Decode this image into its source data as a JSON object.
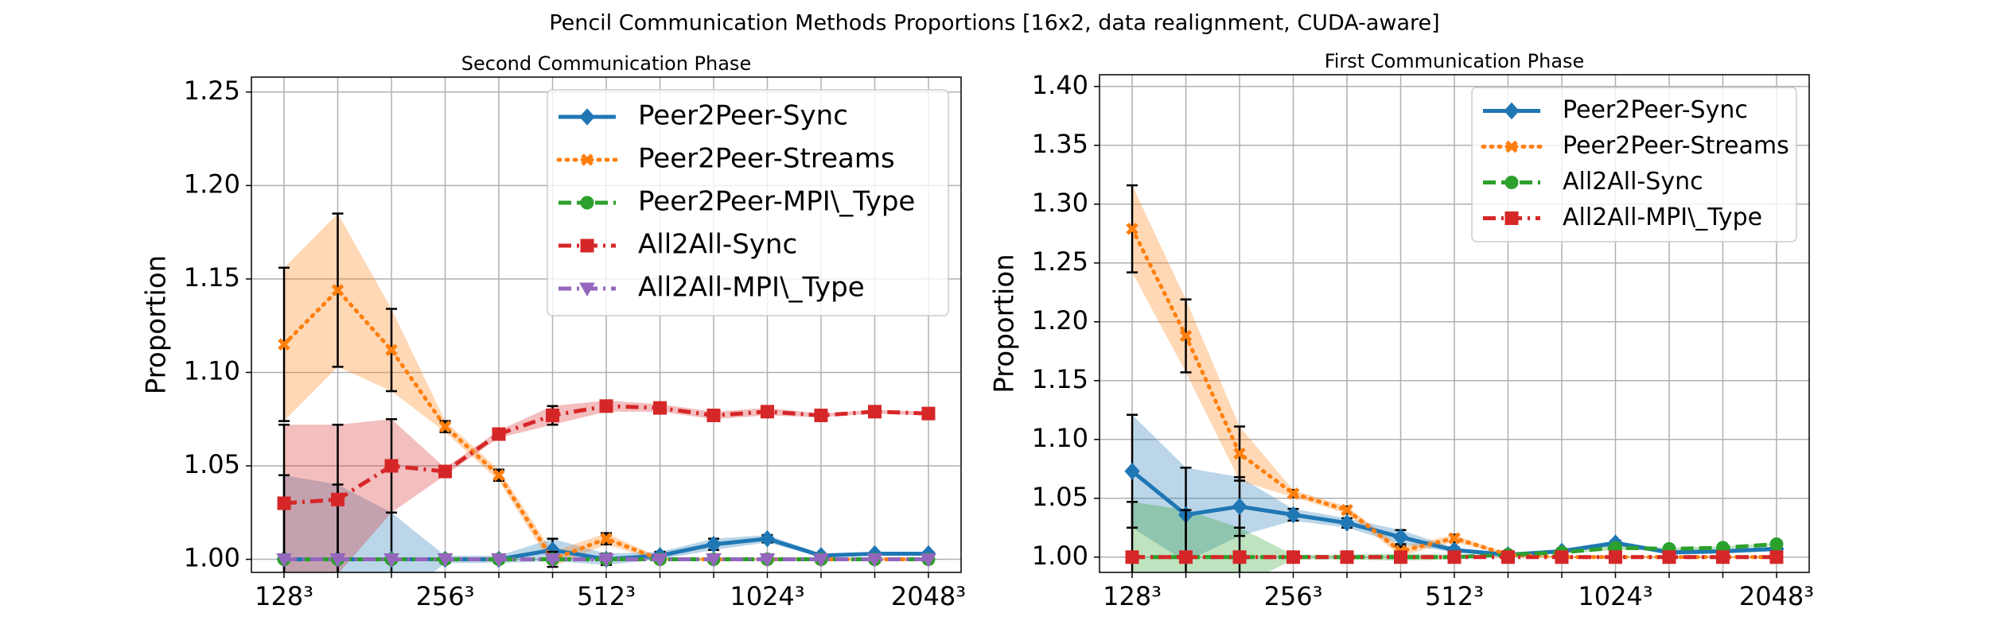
{
  "title": "Pencil Communication Methods Proportions [16x2, data realignment, CUDA-aware]",
  "chart_data": [
    {
      "type": "line",
      "title": "Second Communication Phase",
      "ylabel": "Proportion",
      "categories": [
        "128³",
        null,
        null,
        "256³",
        null,
        null,
        "512³",
        null,
        null,
        "1024³",
        null,
        null,
        "2048³"
      ],
      "ylim": [
        0.993,
        1.258
      ],
      "yticks": [
        {
          "value": 1.0,
          "label": "1.00"
        },
        1.05,
        {
          "value": 1.1,
          "label": "1.10"
        },
        1.15,
        {
          "value": 1.2,
          "label": "1.20"
        },
        1.25
      ],
      "grid": true,
      "legend": "upper right",
      "series": [
        {
          "name": "Peer2Peer-Sync",
          "color": "#1f77b4",
          "marker": "diamond",
          "linestyle": "solid",
          "values": [
            1.0,
            1.0,
            1.0,
            1.0,
            1.0,
            1.005,
            1.0,
            1.002,
            1.008,
            1.011,
            1.002,
            1.003,
            1.003
          ],
          "errors": [
            0.045,
            0.04,
            0.025,
            0.002,
            0.002,
            0.006,
            0.003,
            0.002,
            0.003,
            0.002,
            0.001,
            0.001,
            0.001
          ]
        },
        {
          "name": "Peer2Peer-Streams",
          "color": "#ff7f0e",
          "marker": "x",
          "linestyle": "dotted",
          "values": [
            1.115,
            1.144,
            1.112,
            1.071,
            1.045,
            1.0,
            1.011,
            1.0,
            1.0,
            1.0,
            1.0,
            1.0,
            1.0
          ],
          "errors": [
            0.041,
            0.041,
            0.022,
            0.003,
            0.003,
            0.004,
            0.003,
            0.001,
            0.001,
            0.001,
            0.001,
            0.001,
            0.001
          ]
        },
        {
          "name": "Peer2Peer-MPI\\_Type",
          "color": "#2ca02c",
          "marker": "circle",
          "linestyle": "dashed",
          "values": [
            1.0,
            1.0,
            1.0,
            1.0,
            1.0,
            1.0,
            1.0,
            1.0,
            1.0,
            1.0,
            1.0,
            1.0,
            1.0
          ]
        },
        {
          "name": "All2All-Sync",
          "color": "#d62728",
          "marker": "square",
          "linestyle": "dashdot",
          "values": [
            1.03,
            1.032,
            1.05,
            1.047,
            1.067,
            1.077,
            1.082,
            1.081,
            1.077,
            1.079,
            1.077,
            1.079,
            1.078
          ],
          "errors": [
            0.042,
            0.04,
            0.025,
            0.002,
            0.002,
            0.005,
            0.003,
            0.002,
            0.002,
            0.002,
            0.001,
            0.001,
            0.001
          ]
        },
        {
          "name": "All2All-MPI\\_Type",
          "color": "#9467bd",
          "marker": "triangle",
          "linestyle": "dashdot",
          "values": [
            1.0,
            1.0,
            1.0,
            1.0,
            1.0,
            1.0,
            1.0,
            1.0,
            1.0,
            1.0,
            1.0,
            1.0,
            1.0
          ]
        }
      ]
    },
    {
      "type": "line",
      "title": "First Communication Phase",
      "ylabel": "Proportion",
      "categories": [
        "128³",
        null,
        null,
        "256³",
        null,
        null,
        "512³",
        null,
        null,
        "1024³",
        null,
        null,
        "2048³"
      ],
      "ylim": [
        0.987,
        1.41
      ],
      "yticks": [
        {
          "value": 1.0,
          "label": "1.00"
        },
        1.05,
        {
          "value": 1.1,
          "label": "1.10"
        },
        1.15,
        {
          "value": 1.2,
          "label": "1.20"
        },
        1.25,
        {
          "value": 1.3,
          "label": "1.30"
        },
        1.35,
        {
          "value": 1.4,
          "label": "1.40"
        }
      ],
      "grid": true,
      "legend": "upper right",
      "series": [
        {
          "name": "Peer2Peer-Sync",
          "color": "#1f77b4",
          "marker": "diamond",
          "linestyle": "solid",
          "values": [
            1.073,
            1.036,
            1.043,
            1.036,
            1.029,
            1.017,
            1.006,
            1.002,
            1.005,
            1.012,
            1.004,
            1.005,
            1.007
          ],
          "errors": [
            0.048,
            0.04,
            0.025,
            0.005,
            0.004,
            0.006,
            0.002,
            0.001,
            0.002,
            0.002,
            0.002,
            0.002,
            0.002
          ]
        },
        {
          "name": "Peer2Peer-Streams",
          "color": "#ff7f0e",
          "marker": "x",
          "linestyle": "dotted",
          "values": [
            1.279,
            1.188,
            1.088,
            1.054,
            1.04,
            1.005,
            1.016,
            1.002,
            1.0,
            1.0,
            1.0,
            1.0,
            1.0
          ],
          "errors": [
            0.037,
            0.031,
            0.023,
            0.003,
            0.003,
            0.004,
            0.003,
            0.001,
            0.001,
            0.001,
            0.001,
            0.001,
            0.001
          ]
        },
        {
          "name": "All2All-Sync",
          "color": "#2ca02c",
          "marker": "circle",
          "linestyle": "dashed",
          "values": [
            1.0,
            1.0,
            1.0,
            1.0,
            1.0,
            1.0,
            1.0,
            1.002,
            1.004,
            1.008,
            1.007,
            1.008,
            1.011
          ],
          "errors": [
            0.047,
            0.04,
            0.025,
            0.002,
            0.002,
            0.003,
            0.002,
            0.001,
            0.001,
            0.002,
            0.001,
            0.001,
            0.001
          ]
        },
        {
          "name": "All2All-MPI\\_Type",
          "color": "#d62728",
          "marker": "square",
          "linestyle": "dashdot",
          "values": [
            1.0,
            1.0,
            1.0,
            1.0,
            1.0,
            1.0,
            1.0,
            1.0,
            1.0,
            1.0,
            1.0,
            1.0,
            1.0
          ]
        }
      ]
    }
  ]
}
